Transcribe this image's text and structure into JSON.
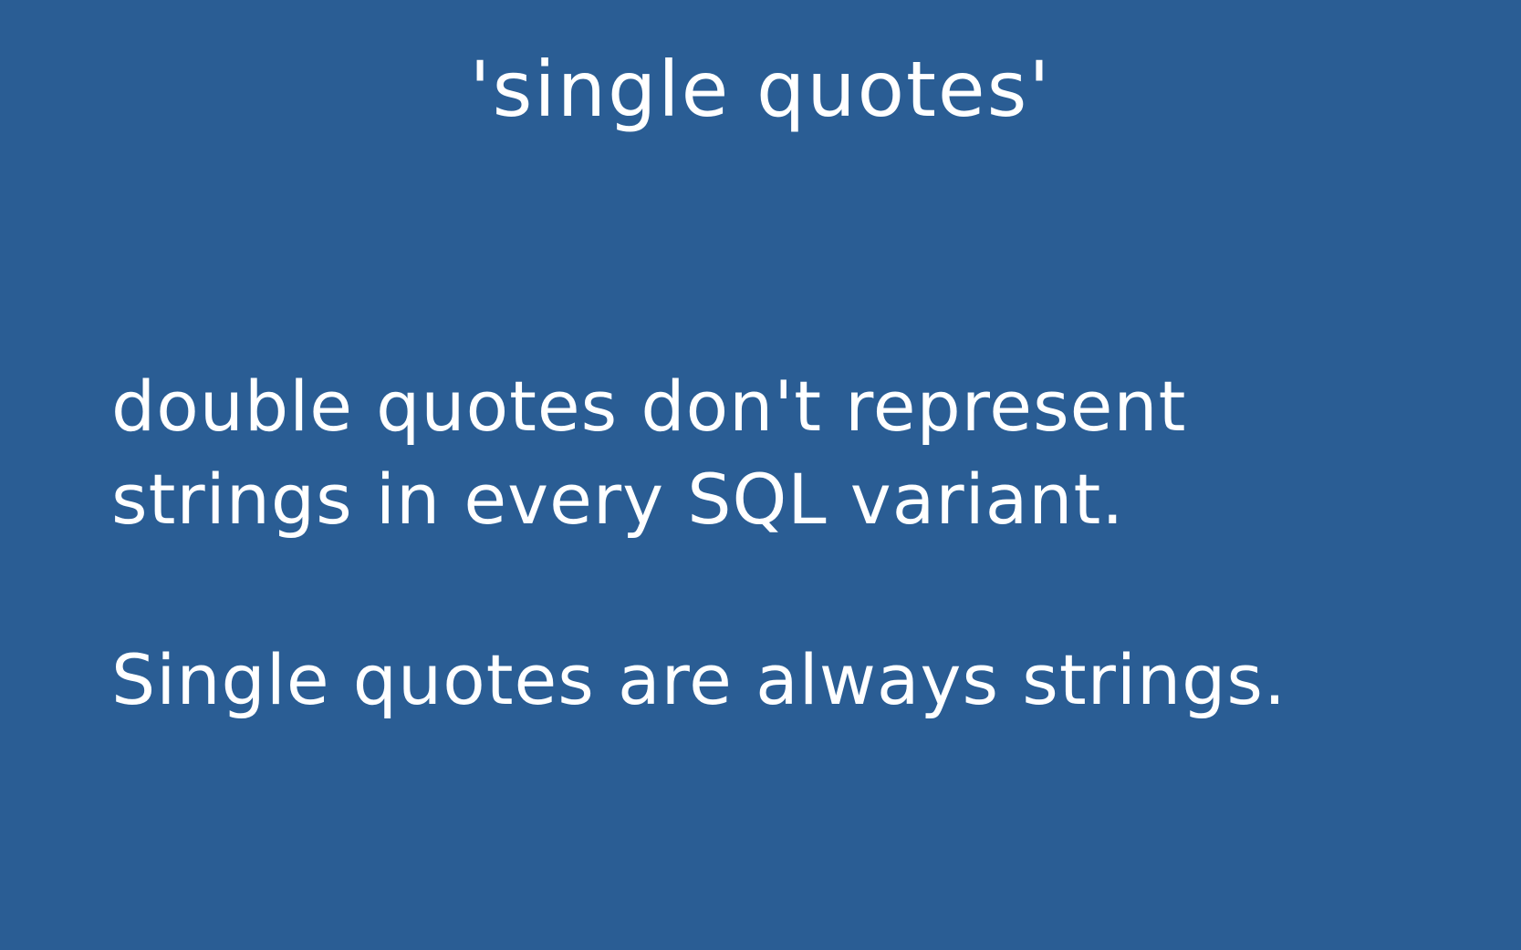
{
  "slide": {
    "title": "'single quotes'",
    "body": {
      "line1": "double quotes don't represent",
      "line2": "strings in every SQL variant.",
      "line3": "Single quotes are always strings."
    }
  },
  "colors": {
    "background": "#2a5d94",
    "text": "#ffffff"
  }
}
